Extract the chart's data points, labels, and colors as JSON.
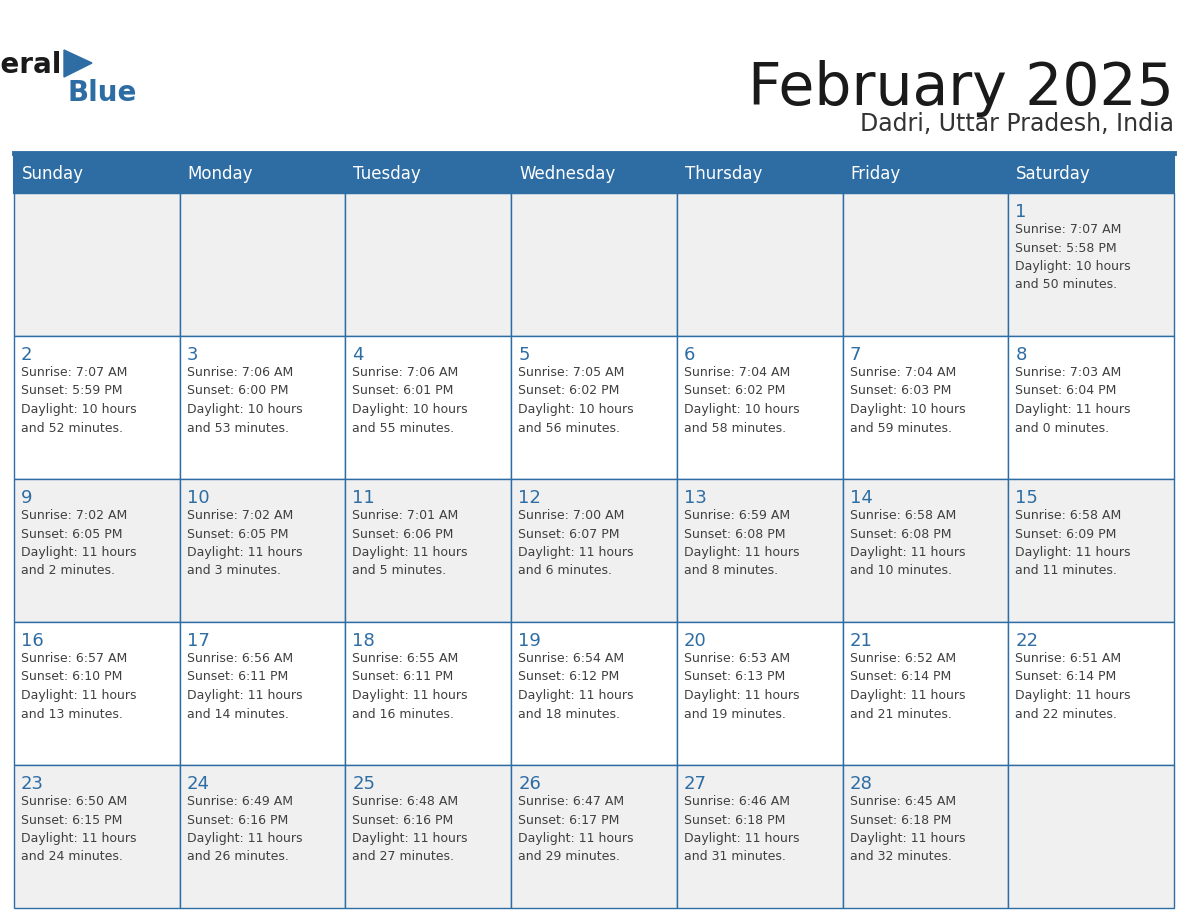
{
  "title": "February 2025",
  "subtitle": "Dadri, Uttar Pradesh, India",
  "header_bg": "#2E6DA4",
  "header_text_color": "#FFFFFF",
  "day_names": [
    "Sunday",
    "Monday",
    "Tuesday",
    "Wednesday",
    "Thursday",
    "Friday",
    "Saturday"
  ],
  "cell_bg_odd": "#F0F0F0",
  "cell_bg_even": "#FFFFFF",
  "cell_border_color": "#2E6DA4",
  "day_number_color": "#2E6DA4",
  "info_text_color": "#404040",
  "logo_general_color": "#1a1a1a",
  "logo_blue_color": "#2E6DA4",
  "title_color": "#1a1a1a",
  "subtitle_color": "#333333",
  "calendar_data": [
    [
      null,
      null,
      null,
      null,
      null,
      null,
      {
        "day": 1,
        "sunrise": "7:07 AM",
        "sunset": "5:58 PM",
        "daylight": "10 hours\nand 50 minutes."
      }
    ],
    [
      {
        "day": 2,
        "sunrise": "7:07 AM",
        "sunset": "5:59 PM",
        "daylight": "10 hours\nand 52 minutes."
      },
      {
        "day": 3,
        "sunrise": "7:06 AM",
        "sunset": "6:00 PM",
        "daylight": "10 hours\nand 53 minutes."
      },
      {
        "day": 4,
        "sunrise": "7:06 AM",
        "sunset": "6:01 PM",
        "daylight": "10 hours\nand 55 minutes."
      },
      {
        "day": 5,
        "sunrise": "7:05 AM",
        "sunset": "6:02 PM",
        "daylight": "10 hours\nand 56 minutes."
      },
      {
        "day": 6,
        "sunrise": "7:04 AM",
        "sunset": "6:02 PM",
        "daylight": "10 hours\nand 58 minutes."
      },
      {
        "day": 7,
        "sunrise": "7:04 AM",
        "sunset": "6:03 PM",
        "daylight": "10 hours\nand 59 minutes."
      },
      {
        "day": 8,
        "sunrise": "7:03 AM",
        "sunset": "6:04 PM",
        "daylight": "11 hours\nand 0 minutes."
      }
    ],
    [
      {
        "day": 9,
        "sunrise": "7:02 AM",
        "sunset": "6:05 PM",
        "daylight": "11 hours\nand 2 minutes."
      },
      {
        "day": 10,
        "sunrise": "7:02 AM",
        "sunset": "6:05 PM",
        "daylight": "11 hours\nand 3 minutes."
      },
      {
        "day": 11,
        "sunrise": "7:01 AM",
        "sunset": "6:06 PM",
        "daylight": "11 hours\nand 5 minutes."
      },
      {
        "day": 12,
        "sunrise": "7:00 AM",
        "sunset": "6:07 PM",
        "daylight": "11 hours\nand 6 minutes."
      },
      {
        "day": 13,
        "sunrise": "6:59 AM",
        "sunset": "6:08 PM",
        "daylight": "11 hours\nand 8 minutes."
      },
      {
        "day": 14,
        "sunrise": "6:58 AM",
        "sunset": "6:08 PM",
        "daylight": "11 hours\nand 10 minutes."
      },
      {
        "day": 15,
        "sunrise": "6:58 AM",
        "sunset": "6:09 PM",
        "daylight": "11 hours\nand 11 minutes."
      }
    ],
    [
      {
        "day": 16,
        "sunrise": "6:57 AM",
        "sunset": "6:10 PM",
        "daylight": "11 hours\nand 13 minutes."
      },
      {
        "day": 17,
        "sunrise": "6:56 AM",
        "sunset": "6:11 PM",
        "daylight": "11 hours\nand 14 minutes."
      },
      {
        "day": 18,
        "sunrise": "6:55 AM",
        "sunset": "6:11 PM",
        "daylight": "11 hours\nand 16 minutes."
      },
      {
        "day": 19,
        "sunrise": "6:54 AM",
        "sunset": "6:12 PM",
        "daylight": "11 hours\nand 18 minutes."
      },
      {
        "day": 20,
        "sunrise": "6:53 AM",
        "sunset": "6:13 PM",
        "daylight": "11 hours\nand 19 minutes."
      },
      {
        "day": 21,
        "sunrise": "6:52 AM",
        "sunset": "6:14 PM",
        "daylight": "11 hours\nand 21 minutes."
      },
      {
        "day": 22,
        "sunrise": "6:51 AM",
        "sunset": "6:14 PM",
        "daylight": "11 hours\nand 22 minutes."
      }
    ],
    [
      {
        "day": 23,
        "sunrise": "6:50 AM",
        "sunset": "6:15 PM",
        "daylight": "11 hours\nand 24 minutes."
      },
      {
        "day": 24,
        "sunrise": "6:49 AM",
        "sunset": "6:16 PM",
        "daylight": "11 hours\nand 26 minutes."
      },
      {
        "day": 25,
        "sunrise": "6:48 AM",
        "sunset": "6:16 PM",
        "daylight": "11 hours\nand 27 minutes."
      },
      {
        "day": 26,
        "sunrise": "6:47 AM",
        "sunset": "6:17 PM",
        "daylight": "11 hours\nand 29 minutes."
      },
      {
        "day": 27,
        "sunrise": "6:46 AM",
        "sunset": "6:18 PM",
        "daylight": "11 hours\nand 31 minutes."
      },
      {
        "day": 28,
        "sunrise": "6:45 AM",
        "sunset": "6:18 PM",
        "daylight": "11 hours\nand 32 minutes."
      },
      null
    ]
  ]
}
